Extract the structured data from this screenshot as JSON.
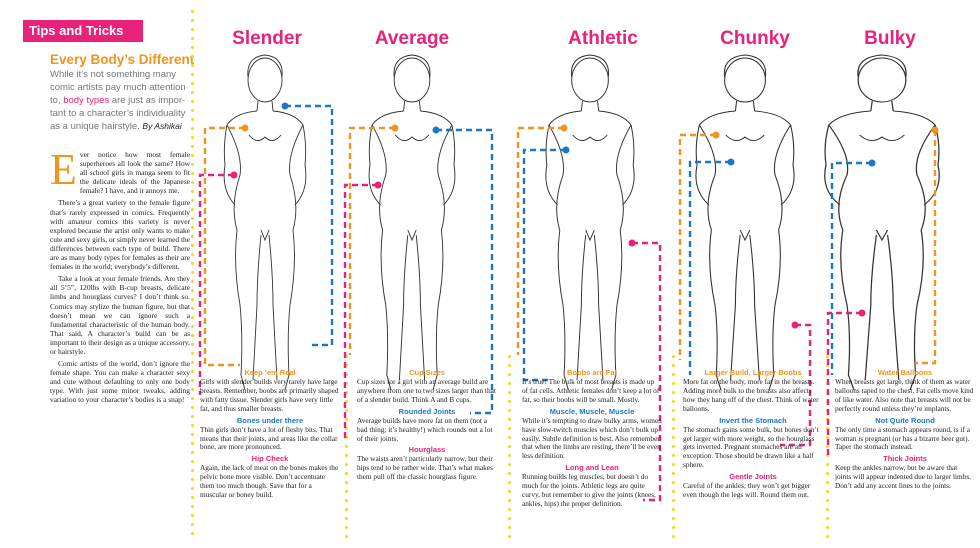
{
  "sidebar": {
    "badge": "Tips and Tricks",
    "heading": "Every Body’s Different",
    "intro_before": "While it’s not something many comic artists pay much attention to, ",
    "intro_highlight": "body types",
    "intro_after": " are just as impor­tant to a character’s individuality as a unique hairstyle.",
    "byline": "By Ashikai",
    "dropcap": "E",
    "paragraphs": [
      "ver notice how most female superheroes all look the same? How all school girls in manga seem to fit the delicate ideals of the Japanese female? I have, and it annoys me.",
      "There’s a great variety to the female figure that’s rarely expressed in comics. Frequently with amateur comics this variety is never explored because the artist only wants to make cute and sexy girls, or simply never learned the differ­ences between each type of build. There are as many body types for females as their are females in the world; everybody’s different.",
      "Take a look at your female friends. Are they all 5’5”, 120lbs with B-cup breasts, delicate limbs and hourglass curves? I don’t think so. Comics may stylize the human figure, but that doesn’t mean we can ignore such a fundamental charac­teristic of the human body. That said, A character’s build can be as important to their design as a unique accessory, or hair­style.",
      "Comic artists of the world, don’t ignore the female shape. You can make a character sexy and cute without defaulting to only one body type. With just some minor tweaks, adding variation to your character’s bodies is a snap!"
    ]
  },
  "columns": [
    {
      "title": "Slender",
      "tips": [
        {
          "heading": "Keep ’em Real",
          "color": "orange",
          "text": "Girls with slender builds very rarely have large breasts. Remember, boobs are primarily shaped with fatty tissue. Slender girls have very little fat, and thus smaller breasts."
        },
        {
          "heading": "Bones under there",
          "color": "blue",
          "text": "Thin girls don’t have a lot of fleshy bits. That means that their joints, and areas like the collar bone, are more pronounced."
        },
        {
          "heading": "Hip Check",
          "color": "pink",
          "text": "Again, the lack of meat on the bones makes the pelvic bone more visible. Don’t accentuate them too much though. Save that for a muscular or boney build."
        }
      ]
    },
    {
      "title": "Average",
      "tips": [
        {
          "heading": "Cup Sizes",
          "color": "orange",
          "text": "Cup sizes for a girl with an average build are anywhere from one to two sizes larger than that of a slender build. Think A and B cups."
        },
        {
          "heading": "Rounded Joints",
          "color": "blue",
          "text": "Average builds have more fat on them (not a bad thing; it’s healthy!) which rounds out a lot of their joints."
        },
        {
          "heading": "Hourglass",
          "color": "pink",
          "text": "The waists aren’t particularly narrow, but their hips tend to be rather wide. That’s what makes them pull off the classic hourglass figure."
        }
      ]
    },
    {
      "title": "Athletic",
      "tips": [
        {
          "heading": "Boobs are Fat",
          "color": "orange",
          "text": "It’s true! The bulk of most breasts is made up of fat cells. Athletic females don’t keep a lot of fat, so their boobs will be small. Mostly."
        },
        {
          "heading": "Muscle, Muscle, Muscle",
          "color": "blue",
          "text": "While it’s tempting to draw bulky arms, women have slow-twitch muscles which don’t bulk up easily. Subtle definition is best. Also remember that when the limbs are resting, there’ll be even less defini­tion."
        },
        {
          "heading": "Long and Lean",
          "color": "pink",
          "text": "Running builds leg muscles, but doesn’t do much for the joints. Athletic legs are quite curvy, but remember to give the joints (knees, ankles, hips) the proper definition."
        }
      ]
    },
    {
      "title": "Chunky",
      "tips": [
        {
          "heading": "Larger Build, Larger Boobs",
          "color": "orange",
          "text": "More fat on the body, more fat in the breasts. Adding more bulk to the breasts also affects how they hang off of the chest. Think of water balloons."
        },
        {
          "heading": "Invert the Stomach",
          "color": "blue",
          "text": "The stomach gains some bulk, but bones don’t get larger with more weight, so the hourglass gets inverted. Pregnant stom­aches are an exception. Those should be drawn like a half sphere."
        },
        {
          "heading": "Gentle Joints",
          "color": "pink",
          "text": "Careful of the ankles; they won’t get bigger even though the legs will. Round them out."
        }
      ]
    },
    {
      "title": "Bulky",
      "tips": [
        {
          "heading": "Water Balloons",
          "color": "orange",
          "text": "When breasts get large, think of them as water balloons taped to the chest. Fat cells move kind of like water. Also note that breasts will not be perfectly round unless they’re implants."
        },
        {
          "heading": "Not Quite Round",
          "color": "blue",
          "text": "The only time a stomach appears round, is if a woman is pregnant (or has a bizarre beer gut). Taper the stomach instead."
        },
        {
          "heading": "Thick Joints",
          "color": "pink",
          "text": "Keep the ankles narrow, but be aware that joints will appear indented due to larger limbs. Don’t add any accent lines to the joints."
        }
      ]
    }
  ],
  "colors": {
    "orange": "#f0941f",
    "blue": "#1f77c4",
    "pink": "#e8217a",
    "yellow_dots": "#f5d90a"
  }
}
